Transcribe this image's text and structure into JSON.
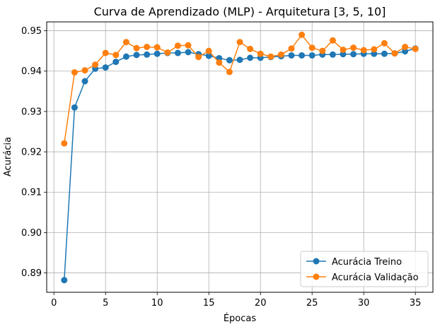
{
  "chart_data": {
    "type": "line",
    "title": "Curva de Aprendizado (MLP) - Arquitetura [3, 5, 10]",
    "xlabel": "Épocas",
    "ylabel": "Acurácia",
    "xlim": [
      -0.7,
      36.7
    ],
    "ylim": [
      0.8852,
      0.9522
    ],
    "xticks": [
      0,
      5,
      10,
      15,
      20,
      25,
      30,
      35
    ],
    "yticks": [
      0.89,
      0.9,
      0.91,
      0.92,
      0.93,
      0.94,
      0.95
    ],
    "ytick_labels": [
      "0.89",
      "0.90",
      "0.91",
      "0.92",
      "0.93",
      "0.94",
      "0.95"
    ],
    "grid": true,
    "legend_position": "lower-right",
    "x": [
      1,
      2,
      3,
      4,
      5,
      6,
      7,
      8,
      9,
      10,
      11,
      12,
      13,
      14,
      15,
      16,
      17,
      18,
      19,
      20,
      21,
      22,
      23,
      24,
      25,
      26,
      27,
      28,
      29,
      30,
      31,
      32,
      33,
      34,
      35
    ],
    "series": [
      {
        "name": "Acurácia Treino",
        "color": "#1f77b4",
        "values": [
          0.8882,
          0.931,
          0.9375,
          0.9406,
          0.9409,
          0.9423,
          0.9436,
          0.944,
          0.9441,
          0.9443,
          0.9445,
          0.9445,
          0.9447,
          0.9442,
          0.9438,
          0.9432,
          0.9427,
          0.9428,
          0.9433,
          0.9433,
          0.9435,
          0.9437,
          0.9439,
          0.9439,
          0.9439,
          0.9441,
          0.9441,
          0.9442,
          0.9442,
          0.9443,
          0.9443,
          0.9443,
          0.9444,
          0.9449,
          0.9456
        ]
      },
      {
        "name": "Acurácia Validação",
        "color": "#ff7f0e",
        "values": [
          0.9221,
          0.9397,
          0.9402,
          0.9416,
          0.9445,
          0.944,
          0.9472,
          0.9457,
          0.946,
          0.9459,
          0.9446,
          0.9463,
          0.9464,
          0.9435,
          0.945,
          0.9421,
          0.9398,
          0.9472,
          0.9455,
          0.9443,
          0.9436,
          0.9441,
          0.9456,
          0.949,
          0.9458,
          0.945,
          0.9476,
          0.9453,
          0.9458,
          0.9452,
          0.9454,
          0.9469,
          0.9444,
          0.946,
          0.9455
        ]
      }
    ]
  }
}
